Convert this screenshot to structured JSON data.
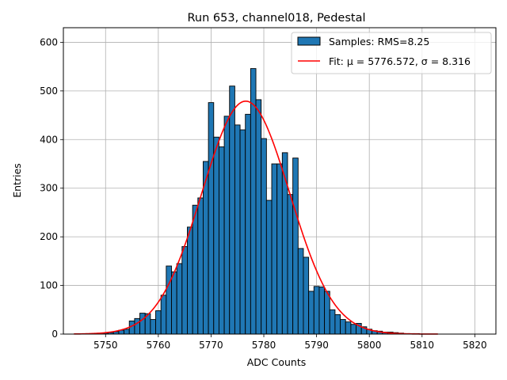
{
  "chart_data": {
    "type": "bar",
    "title": "Run 653, channel018, Pedestal",
    "xlabel": "ADC Counts",
    "ylabel": "Entries",
    "xlim": [
      5742,
      5824
    ],
    "ylim": [
      0,
      630
    ],
    "xticks": [
      5750,
      5760,
      5770,
      5780,
      5790,
      5800,
      5810,
      5820
    ],
    "yticks": [
      0,
      100,
      200,
      300,
      400,
      500,
      600
    ],
    "grid": true,
    "legend_position": "top-right",
    "bin_width": 1,
    "histogram": {
      "name": "Samples: RMS=8.25",
      "color": "#1f77b4",
      "edge_color": "#000000",
      "bins": [
        5750,
        5751,
        5752,
        5753,
        5754,
        5755,
        5756,
        5757,
        5758,
        5759,
        5760,
        5761,
        5762,
        5763,
        5764,
        5765,
        5766,
        5767,
        5768,
        5769,
        5770,
        5771,
        5772,
        5773,
        5774,
        5775,
        5776,
        5777,
        5778,
        5779,
        5780,
        5781,
        5782,
        5783,
        5784,
        5785,
        5786,
        5787,
        5788,
        5789,
        5790,
        5791,
        5792,
        5793,
        5794,
        5795,
        5796,
        5797,
        5798,
        5799,
        5800,
        5801,
        5802,
        5803,
        5804,
        5805,
        5806,
        5807,
        5808,
        5809,
        5810
      ],
      "counts": [
        2,
        3,
        5,
        8,
        10,
        27,
        32,
        43,
        42,
        30,
        48,
        80,
        140,
        128,
        145,
        180,
        220,
        265,
        280,
        355,
        476,
        405,
        385,
        448,
        510,
        430,
        420,
        452,
        546,
        482,
        402,
        275,
        350,
        350,
        373,
        287,
        362,
        176,
        158,
        88,
        98,
        97,
        88,
        50,
        40,
        30,
        25,
        20,
        22,
        15,
        10,
        7,
        6,
        4,
        4,
        3,
        2,
        1,
        1,
        1,
        0
      ]
    },
    "fit": {
      "name": "Fit: μ = 5776.572, σ = 8.316",
      "mu": 5776.572,
      "sigma": 8.316,
      "amplitude": 479,
      "range": [
        5744,
        5813
      ],
      "color": "#ff0000"
    }
  }
}
